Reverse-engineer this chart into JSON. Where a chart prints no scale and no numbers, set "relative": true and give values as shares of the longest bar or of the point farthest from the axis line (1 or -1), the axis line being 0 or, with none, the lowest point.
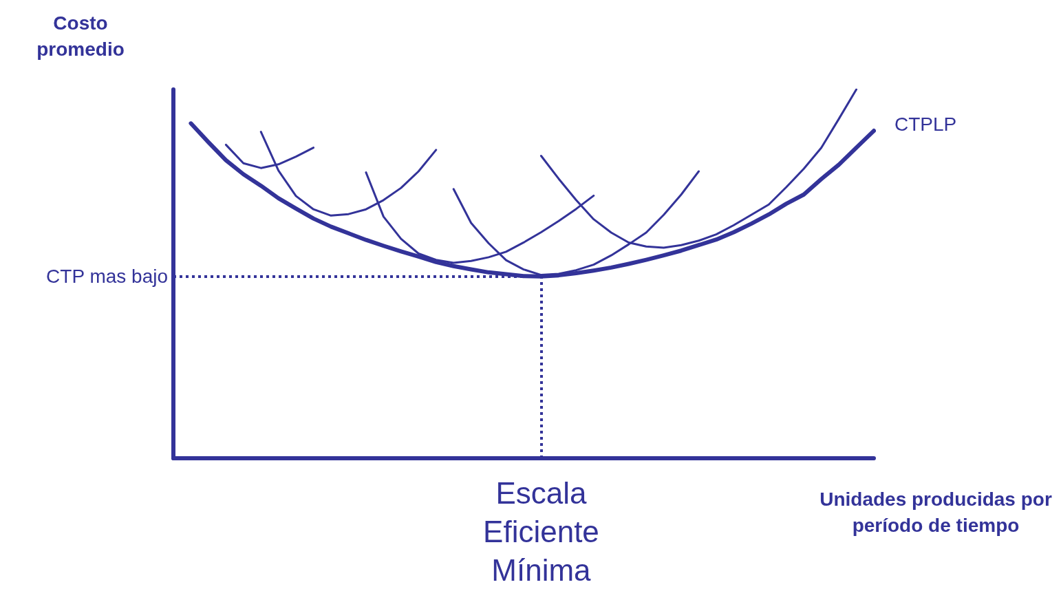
{
  "chart_data": {
    "type": "line",
    "relative": true,
    "xlabel": "Unidades producidas por período de tiempo",
    "ylabel": "Costo promedio",
    "legend": false,
    "grid": false,
    "marker": "none",
    "categories": [
      null,
      null,
      null,
      null,
      null,
      null,
      null,
      null,
      null,
      null,
      null,
      null,
      null,
      null,
      null,
      null,
      null,
      null,
      null,
      null,
      null,
      null,
      null,
      null,
      null,
      null,
      null,
      null,
      null,
      null,
      null,
      null,
      null,
      null,
      null,
      null,
      null,
      null,
      null,
      null,
      null
    ],
    "series": [
      {
        "name": "CTPLP",
        "color": "#333399",
        "values": [
          null,
          0.908,
          0.857,
          0.808,
          0.77,
          0.739,
          0.705,
          0.677,
          0.65,
          0.628,
          0.61,
          0.592,
          0.576,
          0.561,
          0.547,
          0.532,
          0.521,
          0.512,
          0.504,
          0.499,
          0.494,
          0.493,
          0.496,
          0.502,
          0.509,
          0.517,
          0.527,
          0.538,
          0.55,
          0.563,
          0.578,
          0.593,
          0.613,
          0.636,
          0.661,
          0.69,
          0.715,
          0.757,
          0.796,
          0.842,
          0.888
        ]
      },
      {
        "color": "#333399",
        "values": [
          null,
          null,
          null,
          0.85,
          0.8,
          0.787,
          0.797,
          0.818,
          0.842,
          null,
          null,
          null,
          null,
          null,
          null,
          null,
          null,
          null,
          null,
          null,
          null,
          null,
          null,
          null,
          null,
          null,
          null,
          null,
          null,
          null,
          null,
          null,
          null,
          null,
          null,
          null,
          null,
          null,
          null,
          null,
          null
        ]
      },
      {
        "color": "#333399",
        "values": [
          null,
          null,
          null,
          null,
          null,
          0.885,
          0.78,
          0.711,
          0.675,
          0.658,
          0.662,
          0.675,
          0.7,
          0.733,
          0.778,
          0.836,
          null,
          null,
          null,
          null,
          null,
          null,
          null,
          null,
          null,
          null,
          null,
          null,
          null,
          null,
          null,
          null,
          null,
          null,
          null,
          null,
          null,
          null,
          null,
          null,
          null
        ]
      },
      {
        "color": "#333399",
        "values": [
          null,
          null,
          null,
          null,
          null,
          null,
          null,
          null,
          null,
          null,
          null,
          0.775,
          0.655,
          0.595,
          0.555,
          0.538,
          0.53,
          0.535,
          0.545,
          0.56,
          0.585,
          0.613,
          0.643,
          0.676,
          0.712,
          null,
          null,
          null,
          null,
          null,
          null,
          null,
          null,
          null,
          null,
          null,
          null,
          null,
          null,
          null,
          null
        ]
      },
      {
        "color": "#333399",
        "values": [
          null,
          null,
          null,
          null,
          null,
          null,
          null,
          null,
          null,
          null,
          null,
          null,
          null,
          null,
          null,
          null,
          0.73,
          0.638,
          0.583,
          0.537,
          0.512,
          0.497,
          0.5,
          0.51,
          0.525,
          0.55,
          0.58,
          0.612,
          0.66,
          0.715,
          0.778,
          null,
          null,
          null,
          null,
          null,
          null,
          null,
          null,
          null,
          null
        ]
      },
      {
        "color": "#333399",
        "values": [
          null,
          null,
          null,
          null,
          null,
          null,
          null,
          null,
          null,
          null,
          null,
          null,
          null,
          null,
          null,
          null,
          null,
          null,
          null,
          null,
          null,
          0.82,
          0.758,
          0.7,
          0.648,
          0.612,
          0.585,
          0.574,
          0.571,
          0.578,
          0.59,
          0.607,
          0.632,
          0.66,
          0.688,
          0.735,
          0.785,
          0.842,
          0.92,
          1.0,
          null
        ]
      }
    ],
    "ref_lines": [
      {
        "axis": "y",
        "value": 0.493,
        "label": "CTP mas bajo",
        "color": "#333399",
        "line_style": "dotted"
      }
    ],
    "annotations": [
      "Escala Eficiente Mínima"
    ]
  }
}
